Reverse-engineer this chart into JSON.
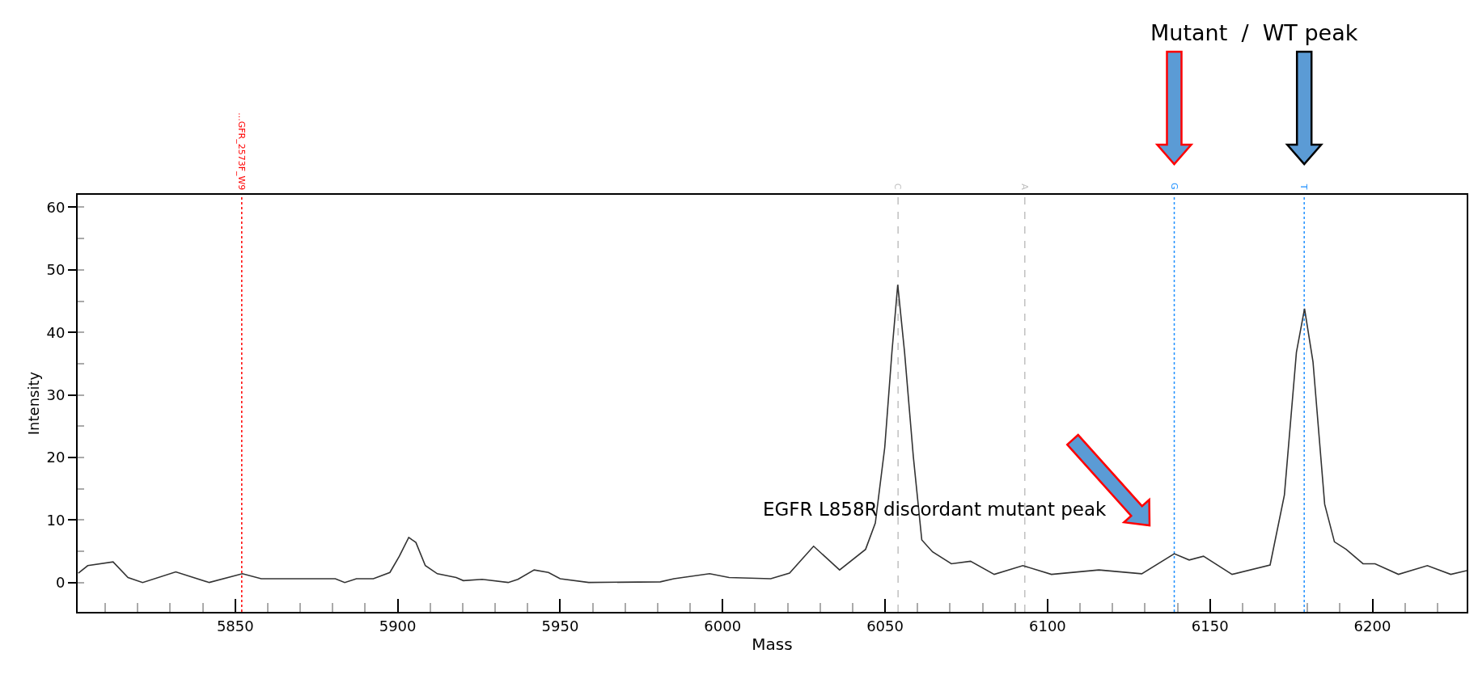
{
  "chart_data": {
    "type": "line",
    "xlabel": "Mass",
    "ylabel": "Intensity",
    "xlim": [
      5801.5,
      6229
    ],
    "ylim": [
      -4.7,
      62
    ],
    "xticks": [
      5850,
      5900,
      5950,
      6000,
      6050,
      6100,
      6150,
      6200
    ],
    "yticks": [
      0,
      10,
      20,
      30,
      40,
      50,
      60
    ],
    "grid": false,
    "marker": "none",
    "line_style": "solid",
    "series": [
      {
        "color": "#333333",
        "x": [
          5801.7,
          5804.6,
          5812.4,
          5817,
          5821.5,
          5831.7,
          5842,
          5852.2,
          5858,
          5880.8,
          5883.7,
          5887.3,
          5892.5,
          5897.6,
          5900.5,
          5903.4,
          5905.6,
          5908.5,
          5912.2,
          5918,
          5920.2,
          5926,
          5934,
          5937,
          5942,
          5946.4,
          5950,
          5958.8,
          5980.8,
          5985,
          5996,
          6002,
          6014.8,
          6020.6,
          6028,
          6036,
          6044,
          6047,
          6049.9,
          6052.1,
          6053.9,
          6056,
          6058.7,
          6061.3,
          6064.6,
          6070.4,
          6076.3,
          6083.6,
          6092.4,
          6101.2,
          6115.8,
          6129,
          6139,
          6143.6,
          6148,
          6156.8,
          6168.5,
          6172.9,
          6176.6,
          6179.1,
          6181.7,
          6185.3,
          6188.3,
          6191.9,
          6197.1,
          6200.8,
          6208,
          6216.9,
          6224.1,
          6229
        ],
        "values": [
          1.5,
          2.7,
          3.3,
          0.8,
          0,
          1.7,
          0,
          1.4,
          0.6,
          0.6,
          0,
          0.6,
          0.6,
          1.6,
          4.2,
          7.2,
          6.4,
          2.7,
          1.4,
          0.8,
          0.3,
          0.5,
          0,
          0.5,
          2,
          1.6,
          0.6,
          0,
          0.1,
          0.6,
          1.4,
          0.8,
          0.6,
          1.5,
          5.8,
          2,
          5.3,
          9.5,
          21.6,
          36.8,
          47.6,
          36.8,
          20.1,
          6.8,
          4.9,
          3,
          3.4,
          1.3,
          2.7,
          1.3,
          2,
          1.4,
          4.6,
          3.6,
          4.2,
          1.3,
          2.8,
          14,
          36.8,
          43.8,
          35.3,
          12.5,
          6.5,
          5.3,
          3,
          3,
          1.3,
          2.7,
          1.3,
          1.9
        ]
      }
    ],
    "ref_lines": [
      {
        "axis": "x",
        "value": 5852,
        "label": "...GFR_2573F_W9",
        "color": "#ff0000",
        "line_style": "dotted"
      },
      {
        "axis": "x",
        "value": 6054,
        "label": "C",
        "color": "#c0c0c0",
        "line_style": "dashed"
      },
      {
        "axis": "x",
        "value": 6093,
        "label": "A",
        "color": "#c0c0c0",
        "line_style": "dashed"
      },
      {
        "axis": "x",
        "value": 6139,
        "label": "G",
        "color": "#1e90ff",
        "line_style": "dotted"
      },
      {
        "axis": "x",
        "value": 6179,
        "label": "T",
        "color": "#1e90ff",
        "line_style": "dotted"
      }
    ],
    "annotations": [
      "Mutant  /  WT peak",
      "EGFR L858R discordant mutant peak"
    ]
  }
}
